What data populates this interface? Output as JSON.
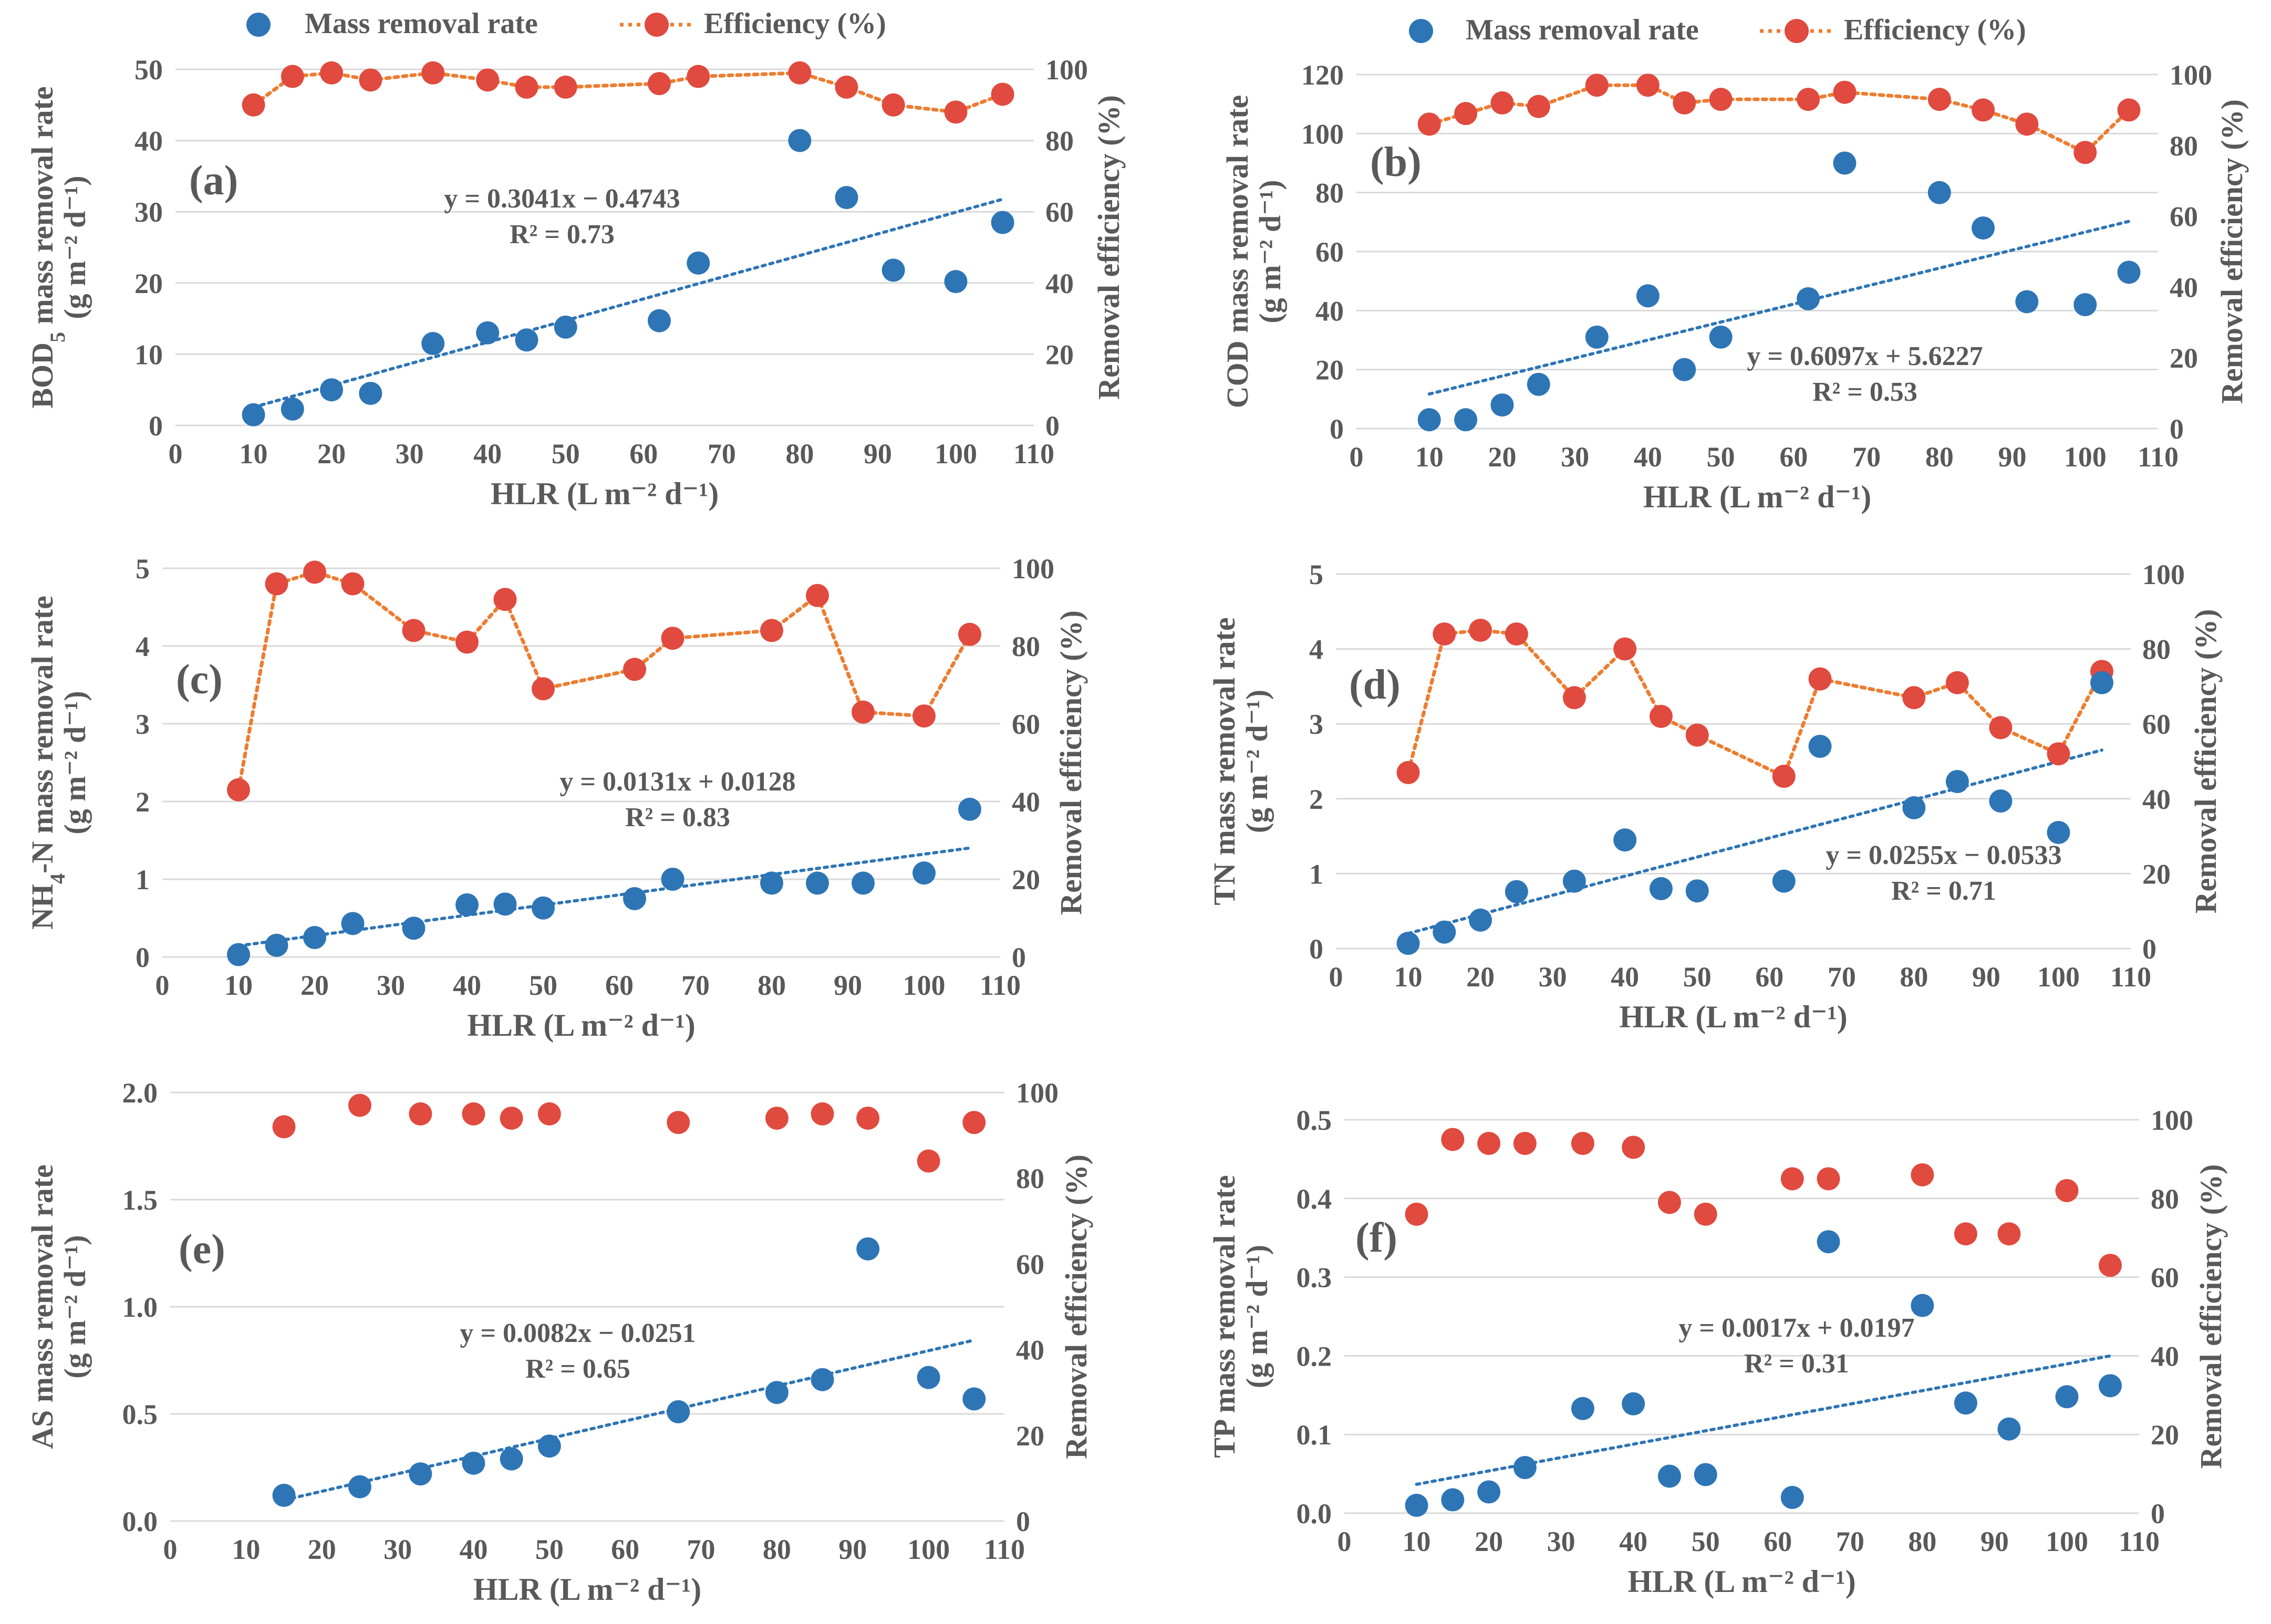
{
  "legend": {
    "mass_label": "Mass removal rate",
    "eff_label": "Efficiency (%)"
  },
  "colors": {
    "mass": "#2E75B6",
    "efficiency": "#E04A3F",
    "eff_line": "#ED7D31",
    "trend": "#2E75B6",
    "grid": "#D9D9D9",
    "text": "#595959"
  },
  "chart_data": [
    {
      "panel": "(a)",
      "type": "scatter",
      "ylabel": "BOD5 mass removal rate (g m⁻² d⁻¹)",
      "ylabel_main": "BOD",
      "ylabel_sub": "5",
      "ylabel_rest": " mass removal rate",
      "ylabel2": "(g m⁻² d⁻¹)",
      "xlabel": "HLR (L m⁻² d⁻¹)",
      "y2label": "Removal efficiency (%)",
      "xlim": [
        0,
        110
      ],
      "xticks": [
        "0",
        "10",
        "20",
        "30",
        "40",
        "50",
        "60",
        "70",
        "80",
        "90",
        "100",
        "110"
      ],
      "ylim": [
        0,
        50
      ],
      "yticks": [
        "0",
        "10",
        "20",
        "30",
        "40",
        "50"
      ],
      "y2lim": [
        0,
        100
      ],
      "y2ticks": [
        "0",
        "20",
        "40",
        "60",
        "80",
        "100"
      ],
      "mass": {
        "x": [
          10,
          15,
          20,
          25,
          33,
          40,
          45,
          50,
          62,
          67,
          80,
          86,
          92,
          100,
          106
        ],
        "y": [
          1.5,
          2.3,
          5,
          4.5,
          11.5,
          13,
          12,
          13.8,
          14.7,
          22.8,
          40,
          32,
          21.8,
          20.2,
          28.5
        ]
      },
      "efficiency": {
        "x": [
          10,
          15,
          20,
          25,
          33,
          40,
          45,
          50,
          62,
          67,
          80,
          86,
          92,
          100,
          106
        ],
        "y": [
          90,
          98,
          99,
          97,
          99,
          97,
          95,
          95,
          96,
          98,
          99,
          95,
          90,
          88,
          93
        ],
        "dotted_line": true
      },
      "trend": {
        "x": [
          10,
          106
        ],
        "slope": 0.3041,
        "intercept": -0.4743,
        "equation": "y = 0.3041x − 0.4743",
        "r2": "R² = 0.73"
      }
    },
    {
      "panel": "(b)",
      "type": "scatter",
      "ylabel": "COD mass removal rate (g m⁻² d⁻¹)",
      "ylabel_main": "COD",
      "ylabel_sub": "",
      "ylabel_rest": " mass removal rate",
      "ylabel2": "(g m⁻² d⁻¹)",
      "xlabel": "HLR (L m⁻² d⁻¹)",
      "y2label": "Removal efficiency (%)",
      "xlim": [
        0,
        110
      ],
      "xticks": [
        "0",
        "10",
        "20",
        "30",
        "40",
        "50",
        "60",
        "70",
        "80",
        "90",
        "100",
        "110"
      ],
      "ylim": [
        0,
        120
      ],
      "yticks": [
        "0",
        "20",
        "40",
        "60",
        "80",
        "100",
        "120"
      ],
      "y2lim": [
        0,
        100
      ],
      "y2ticks": [
        "0",
        "20",
        "40",
        "60",
        "80",
        "100"
      ],
      "mass": {
        "x": [
          10,
          15,
          20,
          25,
          33,
          40,
          45,
          50,
          62,
          67,
          80,
          86,
          92,
          100,
          106
        ],
        "y": [
          3,
          3,
          8,
          15,
          31,
          45,
          20,
          31,
          44,
          90,
          80,
          68,
          43,
          42,
          53
        ]
      },
      "efficiency": {
        "x": [
          10,
          15,
          20,
          25,
          33,
          40,
          45,
          50,
          62,
          67,
          80,
          86,
          92,
          100,
          106
        ],
        "y": [
          86,
          89,
          92,
          91,
          97,
          97,
          92,
          93,
          93,
          95,
          93,
          90,
          86,
          78,
          90
        ],
        "dotted_line": true
      },
      "trend": {
        "x": [
          10,
          106
        ],
        "slope": 0.6097,
        "intercept": 5.6227,
        "equation": "y = 0.6097x + 5.6227",
        "r2": "R² = 0.53"
      }
    },
    {
      "panel": "(c)",
      "type": "scatter",
      "ylabel": "NH4-N mass removal rate (g m⁻² d⁻¹)",
      "ylabel_main": "NH",
      "ylabel_sub": "4",
      "ylabel_rest": "-N mass removal rate",
      "ylabel2": "(g m⁻² d⁻¹)",
      "xlabel": "HLR (L m⁻² d⁻¹)",
      "y2label": "Removal efficiency (%)",
      "xlim": [
        0,
        110
      ],
      "xticks": [
        "0",
        "10",
        "20",
        "30",
        "40",
        "50",
        "60",
        "70",
        "80",
        "90",
        "100",
        "110"
      ],
      "ylim": [
        0,
        5
      ],
      "yticks": [
        "0",
        "1",
        "2",
        "3",
        "4",
        "5"
      ],
      "y2lim": [
        0,
        100
      ],
      "y2ticks": [
        "0",
        "20",
        "40",
        "60",
        "80",
        "100"
      ],
      "mass": {
        "x": [
          10,
          15,
          20,
          25,
          33,
          40,
          45,
          50,
          62,
          67,
          80,
          86,
          92,
          100,
          106
        ],
        "y": [
          0.03,
          0.15,
          0.25,
          0.43,
          0.37,
          0.67,
          0.68,
          0.63,
          0.75,
          1.0,
          0.95,
          0.95,
          0.95,
          1.08,
          1.9
        ]
      },
      "efficiency": {
        "x": [
          10,
          15,
          20,
          25,
          33,
          40,
          45,
          50,
          62,
          67,
          80,
          86,
          92,
          100,
          106
        ],
        "y": [
          43,
          96,
          99,
          96,
          84,
          81,
          92,
          69,
          74,
          82,
          84,
          93,
          63,
          62,
          83
        ],
        "dotted_line": true
      },
      "trend": {
        "x": [
          10,
          106
        ],
        "slope": 0.0131,
        "intercept": 0.0128,
        "equation": "y = 0.0131x + 0.0128",
        "r2": "R² = 0.83"
      }
    },
    {
      "panel": "(d)",
      "type": "scatter",
      "ylabel": "TN mass removal rate (g m⁻² d⁻¹)",
      "ylabel_main": "TN",
      "ylabel_sub": "",
      "ylabel_rest": "  mass removal rate",
      "ylabel2": "(g m⁻² d⁻¹)",
      "xlabel": "HLR (L m⁻² d⁻¹)",
      "y2label": "Removal efficiency (%)",
      "xlim": [
        0,
        110
      ],
      "xticks": [
        "0",
        "10",
        "20",
        "30",
        "40",
        "50",
        "60",
        "70",
        "80",
        "90",
        "100",
        "110"
      ],
      "ylim": [
        0,
        5
      ],
      "yticks": [
        "0",
        "1",
        "2",
        "3",
        "4",
        "5"
      ],
      "y2lim": [
        0,
        100
      ],
      "y2ticks": [
        "0",
        "20",
        "40",
        "60",
        "80",
        "100"
      ],
      "mass": {
        "x": [
          10,
          15,
          20,
          25,
          33,
          40,
          45,
          50,
          62,
          67,
          80,
          86,
          92,
          100,
          106
        ],
        "y": [
          0.07,
          0.22,
          0.38,
          0.76,
          0.9,
          1.45,
          0.8,
          0.77,
          0.9,
          2.7,
          1.88,
          2.23,
          1.97,
          1.55,
          3.55
        ]
      },
      "efficiency": {
        "x": [
          10,
          15,
          20,
          25,
          33,
          40,
          45,
          50,
          62,
          67,
          80,
          86,
          92,
          100,
          106
        ],
        "y": [
          47,
          84,
          85,
          84,
          67,
          80,
          62,
          57,
          46,
          72,
          67,
          71,
          59,
          52,
          74
        ],
        "dotted_line": true
      },
      "trend": {
        "x": [
          10,
          106
        ],
        "slope": 0.0255,
        "intercept": -0.0533,
        "equation": "y = 0.0255x − 0.0533",
        "r2": "R² = 0.71"
      }
    },
    {
      "panel": "(e)",
      "type": "scatter",
      "ylabel": "AS mass removal rate (g m⁻² d⁻¹)",
      "ylabel_main": "AS",
      "ylabel_sub": "",
      "ylabel_rest": " mass removal rate",
      "ylabel2": "(g m⁻² d⁻¹)",
      "xlabel": "HLR (L m⁻² d⁻¹)",
      "y2label": "Removal efficiency (%)",
      "xlim": [
        0,
        110
      ],
      "xticks": [
        "0",
        "10",
        "20",
        "30",
        "40",
        "50",
        "60",
        "70",
        "80",
        "90",
        "100",
        "110"
      ],
      "ylim": [
        0,
        2
      ],
      "yticks": [
        "0.0",
        "0.5",
        "1.0",
        "1.5",
        "2.0"
      ],
      "y2lim": [
        0,
        100
      ],
      "y2ticks": [
        "0",
        "20",
        "40",
        "60",
        "80",
        "100"
      ],
      "mass": {
        "x": [
          15,
          25,
          33,
          40,
          45,
          50,
          67,
          80,
          86,
          92,
          100,
          106
        ],
        "y": [
          0.12,
          0.16,
          0.22,
          0.27,
          0.29,
          0.35,
          0.51,
          0.6,
          0.66,
          1.27,
          0.67,
          0.57
        ]
      },
      "efficiency": {
        "x": [
          15,
          25,
          33,
          40,
          45,
          50,
          67,
          80,
          86,
          92,
          100,
          106
        ],
        "y": [
          92,
          97,
          95,
          95,
          94,
          95,
          93,
          94,
          95,
          94,
          84,
          93
        ],
        "dotted_line": false
      },
      "trend": {
        "x": [
          15,
          106
        ],
        "slope": 0.0082,
        "intercept": -0.0251,
        "equation": "y = 0.0082x − 0.0251",
        "r2": "R² = 0.65"
      }
    },
    {
      "panel": "(f)",
      "type": "scatter",
      "ylabel": "TP mass removal rate (g m⁻² d⁻¹)",
      "ylabel_main": "TP",
      "ylabel_sub": "",
      "ylabel_rest": " mass removal rate",
      "ylabel2": "(g m⁻² d⁻¹)",
      "xlabel": "HLR (L m⁻² d⁻¹)",
      "y2label": "Removal efficiency (%)",
      "xlim": [
        0,
        110
      ],
      "xticks": [
        "0",
        "10",
        "20",
        "30",
        "40",
        "50",
        "60",
        "70",
        "80",
        "90",
        "100",
        "110"
      ],
      "ylim": [
        0,
        0.5
      ],
      "yticks": [
        "0.0",
        "0.1",
        "0.2",
        "0.3",
        "0.4",
        "0.5"
      ],
      "y2lim": [
        0,
        100
      ],
      "y2ticks": [
        "0",
        "20",
        "40",
        "60",
        "80",
        "100"
      ],
      "mass": {
        "x": [
          10,
          15,
          20,
          25,
          33,
          40,
          45,
          50,
          62,
          67,
          80,
          86,
          92,
          100,
          106
        ],
        "y": [
          0.01,
          0.017,
          0.027,
          0.058,
          0.133,
          0.139,
          0.047,
          0.049,
          0.02,
          0.345,
          0.264,
          0.14,
          0.107,
          0.148,
          0.162
        ]
      },
      "efficiency": {
        "x": [
          10,
          15,
          20,
          25,
          33,
          40,
          45,
          50,
          62,
          67,
          80,
          86,
          92,
          100,
          106
        ],
        "y": [
          76,
          95,
          94,
          94,
          94,
          93,
          79,
          76,
          85,
          85,
          86,
          71,
          71,
          82,
          63
        ],
        "dotted_line": false
      },
      "trend": {
        "x": [
          10,
          106
        ],
        "slope": 0.0017,
        "intercept": 0.0197,
        "equation": "y = 0.0017x + 0.0197",
        "r2": "R² = 0.31"
      }
    }
  ]
}
